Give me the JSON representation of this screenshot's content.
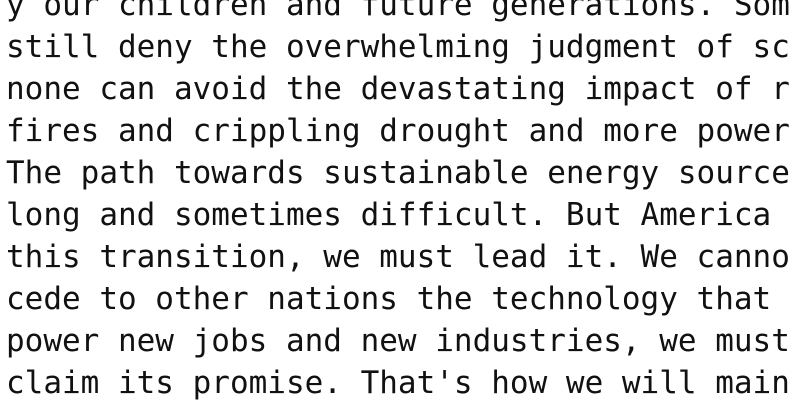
{
  "document": {
    "lines": [
      "y our children and future generations. Som",
      "still deny the overwhelming judgment of sc",
      "none can avoid the devastating impact of r",
      "fires and crippling drought and more power",
      "The path towards sustainable energy source",
      "long and sometimes difficult. But America",
      "this transition, we must lead it. We canno",
      "cede to other nations the technology that",
      "power new jobs and new industries, we must",
      "claim its promise. That's how we will main"
    ]
  }
}
